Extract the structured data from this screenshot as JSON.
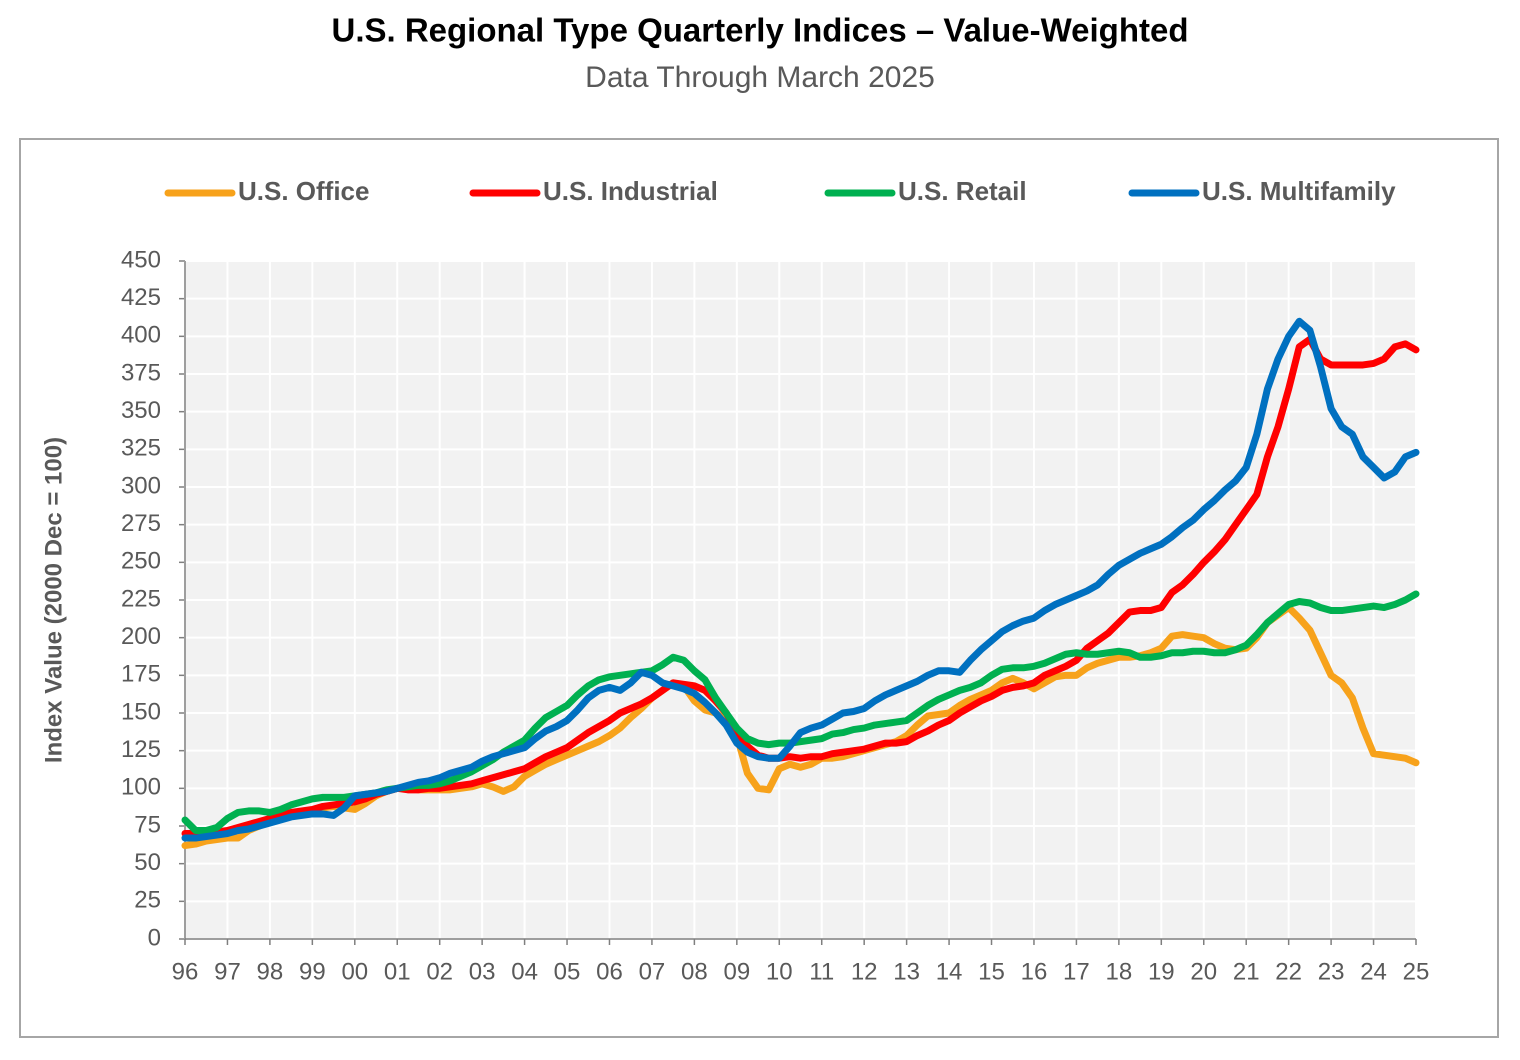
{
  "chart_data": {
    "type": "line",
    "title": "U.S. Regional Type Quarterly Indices – Value-Weighted",
    "subtitle": "Data Through March 2025",
    "y_label": "Index Value (2000 Dec = 100)",
    "categories": [
      "96",
      null,
      null,
      null,
      "97",
      null,
      null,
      null,
      "98",
      null,
      null,
      null,
      "99",
      null,
      null,
      null,
      "00",
      null,
      null,
      null,
      "01",
      null,
      null,
      null,
      "02",
      null,
      null,
      null,
      "03",
      null,
      null,
      null,
      "04",
      null,
      null,
      null,
      "05",
      null,
      null,
      null,
      "06",
      null,
      null,
      null,
      "07",
      null,
      null,
      null,
      "08",
      null,
      null,
      null,
      "09",
      null,
      null,
      null,
      "10",
      null,
      null,
      null,
      "11",
      null,
      null,
      null,
      "12",
      null,
      null,
      null,
      "13",
      null,
      null,
      null,
      "14",
      null,
      null,
      null,
      "15",
      null,
      null,
      null,
      "16",
      null,
      null,
      null,
      "17",
      null,
      null,
      null,
      "18",
      null,
      null,
      null,
      "19",
      null,
      null,
      null,
      "20",
      null,
      null,
      null,
      "21",
      null,
      null,
      null,
      "22",
      null,
      null,
      null,
      "23",
      null,
      null,
      null,
      "24",
      null,
      null,
      null,
      "25"
    ],
    "series": [
      {
        "name": "U.S. Office",
        "color": "#f7a21b",
        "values": [
          62,
          63,
          65,
          66,
          67,
          67,
          72,
          75,
          78,
          81,
          83,
          84,
          85,
          87,
          88,
          87,
          86,
          90,
          95,
          98,
          100,
          100,
          99,
          99,
          99,
          99,
          100,
          101,
          103,
          101,
          98,
          101,
          108,
          112,
          116,
          119,
          122,
          125,
          128,
          131,
          135,
          140,
          147,
          153,
          160,
          165,
          170,
          168,
          158,
          152,
          150,
          145,
          135,
          110,
          100,
          99,
          113,
          116,
          114,
          116,
          120,
          120,
          121,
          123,
          125,
          127,
          129,
          131,
          135,
          142,
          148,
          149,
          150,
          155,
          159,
          162,
          165,
          170,
          173,
          170,
          166,
          170,
          174,
          175,
          175,
          180,
          183,
          185,
          187,
          187,
          188,
          190,
          193,
          201,
          202,
          201,
          200,
          196,
          193,
          192,
          193,
          200,
          210,
          215,
          220,
          213,
          205,
          190,
          175,
          170,
          160,
          140,
          123,
          122,
          121,
          120,
          117
        ]
      },
      {
        "name": "U.S. Industrial",
        "color": "#ff0000",
        "values": [
          70,
          70,
          71,
          71,
          72,
          74,
          76,
          78,
          80,
          82,
          84,
          85,
          86,
          88,
          89,
          90,
          91,
          93,
          96,
          98,
          100,
          99,
          99,
          100,
          100,
          101,
          102,
          103,
          105,
          107,
          109,
          111,
          113,
          117,
          121,
          124,
          127,
          132,
          137,
          141,
          145,
          150,
          153,
          156,
          160,
          165,
          170,
          169,
          168,
          165,
          158,
          150,
          137,
          128,
          122,
          120,
          120,
          121,
          120,
          121,
          121,
          123,
          124,
          125,
          126,
          128,
          130,
          130,
          131,
          135,
          138,
          142,
          145,
          150,
          154,
          158,
          161,
          165,
          167,
          168,
          170,
          175,
          178,
          181,
          185,
          193,
          198,
          203,
          210,
          217,
          218,
          218,
          220,
          230,
          235,
          242,
          250,
          257,
          265,
          275,
          285,
          295,
          320,
          340,
          365,
          393,
          398,
          385,
          381,
          381,
          381,
          381,
          382,
          385,
          393,
          395,
          391
        ]
      },
      {
        "name": "U.S. Retail",
        "color": "#00b050",
        "values": [
          79,
          72,
          72,
          74,
          80,
          84,
          85,
          85,
          84,
          86,
          89,
          91,
          93,
          94,
          94,
          94,
          95,
          96,
          97,
          99,
          100,
          101,
          102,
          102,
          103,
          105,
          108,
          111,
          115,
          119,
          124,
          128,
          132,
          140,
          147,
          151,
          155,
          162,
          168,
          172,
          174,
          175,
          176,
          177,
          178,
          182,
          187,
          185,
          178,
          172,
          160,
          150,
          140,
          133,
          130,
          129,
          130,
          130,
          131,
          132,
          133,
          136,
          137,
          139,
          140,
          142,
          143,
          144,
          145,
          150,
          155,
          159,
          162,
          165,
          167,
          170,
          175,
          179,
          180,
          180,
          181,
          183,
          186,
          189,
          190,
          189,
          189,
          190,
          191,
          190,
          187,
          187,
          188,
          190,
          190,
          191,
          191,
          190,
          190,
          192,
          195,
          202,
          210,
          216,
          222,
          224,
          223,
          220,
          218,
          218,
          219,
          220,
          221,
          220,
          222,
          225,
          229
        ]
      },
      {
        "name": "U.S. Multifamily",
        "color": "#0070c0",
        "values": [
          67,
          67,
          68,
          69,
          70,
          72,
          73,
          75,
          77,
          79,
          81,
          82,
          83,
          83,
          82,
          87,
          95,
          96,
          97,
          98,
          100,
          102,
          104,
          105,
          107,
          110,
          112,
          114,
          118,
          121,
          123,
          125,
          127,
          133,
          138,
          141,
          145,
          152,
          160,
          165,
          167,
          165,
          170,
          177,
          175,
          170,
          168,
          166,
          163,
          157,
          150,
          142,
          130,
          124,
          121,
          120,
          120,
          128,
          137,
          140,
          142,
          146,
          150,
          151,
          153,
          158,
          162,
          165,
          168,
          171,
          175,
          178,
          178,
          177,
          185,
          192,
          198,
          204,
          208,
          211,
          213,
          218,
          222,
          225,
          228,
          231,
          235,
          242,
          248,
          252,
          256,
          259,
          262,
          267,
          273,
          278,
          285,
          291,
          298,
          304,
          313,
          335,
          365,
          385,
          400,
          410,
          404,
          380,
          352,
          340,
          335,
          320,
          313,
          306,
          310,
          320,
          323
        ]
      }
    ],
    "ylim": [
      0,
      450
    ],
    "yticks": [
      0,
      25,
      50,
      75,
      100,
      125,
      150,
      175,
      200,
      225,
      250,
      275,
      300,
      325,
      350,
      375,
      400,
      425,
      450
    ],
    "grid": true,
    "legend": "top"
  }
}
